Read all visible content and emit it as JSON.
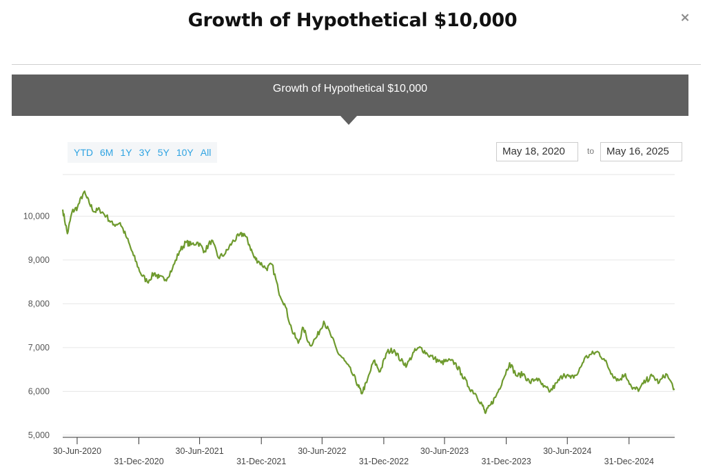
{
  "modal": {
    "title": "Growth of Hypothetical $10,000",
    "close_label": "×"
  },
  "banner": {
    "title": "Growth of Hypothetical $10,000"
  },
  "range_buttons": [
    "YTD",
    "6M",
    "1Y",
    "3Y",
    "5Y",
    "10Y",
    "All"
  ],
  "date_range": {
    "from": "May 18, 2020",
    "to_label": "to",
    "to": "May 16, 2025"
  },
  "colors": {
    "line": "#6e9a2e",
    "banner": "#5f5f5f",
    "range_button": "#2ea3e2"
  },
  "chart_data": {
    "type": "line",
    "title": "",
    "xlabel": "",
    "ylabel": "",
    "ylim": [
      4950,
      10950
    ],
    "yticks": [
      "5,000",
      "6,000",
      "7,000",
      "8,000",
      "9,000",
      "10,000"
    ],
    "xticks": [
      "30-Jun-2020",
      "31-Dec-2020",
      "30-Jun-2021",
      "31-Dec-2021",
      "30-Jun-2022",
      "31-Dec-2022",
      "30-Jun-2023",
      "31-Dec-2023",
      "30-Jun-2024",
      "31-Dec-2024"
    ],
    "grid": "horizontal",
    "legend": "none",
    "series": [
      {
        "x": [
          "2020-05-18",
          "2020-06-01",
          "2020-06-15",
          "2020-07-01",
          "2020-07-20",
          "2020-08-05",
          "2020-08-20",
          "2020-09-05",
          "2020-09-25",
          "2020-10-15",
          "2020-11-05",
          "2020-11-25",
          "2020-12-15",
          "2021-01-05",
          "2021-01-25",
          "2021-02-15",
          "2021-03-01",
          "2021-03-20",
          "2021-04-10",
          "2021-05-01",
          "2021-05-20",
          "2021-06-05",
          "2021-06-25",
          "2021-07-15",
          "2021-08-05",
          "2021-08-25",
          "2021-09-15",
          "2021-10-05",
          "2021-10-25",
          "2021-11-10",
          "2021-11-25",
          "2021-12-10",
          "2021-12-25",
          "2022-01-15",
          "2022-02-01",
          "2022-02-20",
          "2022-03-10",
          "2022-04-01",
          "2022-04-20",
          "2022-05-05",
          "2022-05-25",
          "2022-06-15",
          "2022-07-05",
          "2022-07-25",
          "2022-08-15",
          "2022-09-05",
          "2022-09-25",
          "2022-10-15",
          "2022-10-25",
          "2022-11-10",
          "2022-12-01",
          "2022-12-20",
          "2023-01-10",
          "2023-01-31",
          "2023-02-20",
          "2023-03-10",
          "2023-03-31",
          "2023-04-20",
          "2023-05-10",
          "2023-05-31",
          "2023-06-20",
          "2023-07-10",
          "2023-07-31",
          "2023-08-20",
          "2023-09-10",
          "2023-09-30",
          "2023-10-20",
          "2023-10-30",
          "2023-11-15",
          "2023-12-01",
          "2023-12-20",
          "2024-01-10",
          "2024-01-31",
          "2024-02-20",
          "2024-03-10",
          "2024-03-31",
          "2024-04-20",
          "2024-05-10",
          "2024-05-31",
          "2024-06-20",
          "2024-07-10",
          "2024-07-31",
          "2024-08-20",
          "2024-09-10",
          "2024-09-30",
          "2024-10-20",
          "2024-11-10",
          "2024-11-30",
          "2024-12-20",
          "2025-01-10",
          "2025-01-31",
          "2025-02-20",
          "2025-03-10",
          "2025-03-31",
          "2025-04-20",
          "2025-05-16"
        ],
        "values": [
          10150,
          9600,
          10100,
          10200,
          10550,
          10300,
          10100,
          10150,
          10000,
          9800,
          9850,
          9500,
          9100,
          8700,
          8500,
          8700,
          8600,
          8550,
          8800,
          9200,
          9400,
          9350,
          9400,
          9200,
          9450,
          9050,
          9150,
          9400,
          9550,
          9600,
          9350,
          9050,
          8950,
          8800,
          8900,
          8300,
          8000,
          7400,
          7100,
          7450,
          7050,
          7250,
          7600,
          7300,
          6900,
          6700,
          6450,
          6150,
          5950,
          6200,
          6700,
          6450,
          6900,
          6950,
          6700,
          6600,
          6900,
          7000,
          6850,
          6750,
          6650,
          6700,
          6650,
          6400,
          6100,
          5950,
          5700,
          5500,
          5700,
          5900,
          6250,
          6650,
          6350,
          6400,
          6200,
          6300,
          6100,
          6000,
          6200,
          6400,
          6300,
          6400,
          6750,
          6850,
          6900,
          6700,
          6400,
          6250,
          6400,
          6050,
          6050,
          6250,
          6350,
          6200,
          6400,
          6050
        ]
      }
    ]
  }
}
